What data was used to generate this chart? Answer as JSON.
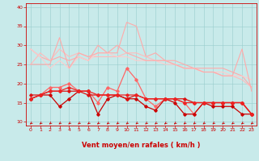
{
  "x": [
    0,
    1,
    2,
    3,
    4,
    5,
    6,
    7,
    8,
    9,
    10,
    11,
    12,
    13,
    14,
    15,
    16,
    17,
    18,
    19,
    20,
    21,
    22,
    23
  ],
  "lines": [
    {
      "color": "#ffaaaa",
      "linewidth": 0.8,
      "marker": null,
      "y": [
        29,
        27,
        26,
        27,
        26,
        27,
        26,
        30,
        28,
        28,
        36,
        35,
        27,
        28,
        26,
        26,
        25,
        24,
        24,
        24,
        24,
        23,
        22,
        19
      ]
    },
    {
      "color": "#ffbbbb",
      "linewidth": 0.8,
      "marker": null,
      "y": [
        25,
        28,
        26,
        29,
        27,
        28,
        27,
        27,
        27,
        27,
        28,
        28,
        27,
        26,
        26,
        25,
        24,
        24,
        23,
        23,
        22,
        22,
        21,
        19
      ]
    },
    {
      "color": "#ffcccc",
      "linewidth": 0.8,
      "marker": null,
      "y": [
        29,
        27,
        24,
        26,
        24,
        27,
        26,
        28,
        28,
        27,
        27,
        26,
        26,
        26,
        25,
        25,
        24,
        24,
        23,
        23,
        23,
        22,
        22,
        21
      ]
    },
    {
      "color": "#ffaaaa",
      "linewidth": 0.8,
      "marker": null,
      "y": [
        25,
        25,
        25,
        32,
        24,
        28,
        27,
        28,
        28,
        30,
        28,
        27,
        26,
        26,
        26,
        25,
        24,
        24,
        23,
        23,
        22,
        22,
        29,
        18
      ]
    },
    {
      "color": "#ff6666",
      "linewidth": 0.9,
      "marker": "D",
      "markersize": 1.8,
      "y": [
        16,
        17,
        19,
        19,
        20,
        18,
        18,
        15,
        19,
        18,
        24,
        21,
        16,
        14,
        16,
        16,
        15,
        12,
        15,
        15,
        15,
        15,
        15,
        12
      ]
    },
    {
      "color": "#cc0000",
      "linewidth": 0.9,
      "marker": "D",
      "markersize": 1.8,
      "y": [
        16,
        17,
        17,
        14,
        16,
        18,
        18,
        12,
        16,
        17,
        16,
        16,
        14,
        13,
        16,
        15,
        12,
        12,
        15,
        14,
        14,
        14,
        12,
        12
      ]
    },
    {
      "color": "#dd1111",
      "linewidth": 0.9,
      "marker": "D",
      "markersize": 1.8,
      "y": [
        17,
        17,
        18,
        18,
        18,
        18,
        17,
        17,
        17,
        17,
        16,
        17,
        16,
        16,
        16,
        16,
        16,
        15,
        15,
        15,
        15,
        15,
        15,
        12
      ]
    },
    {
      "color": "#ee2222",
      "linewidth": 0.9,
      "marker": "D",
      "markersize": 1.8,
      "y": [
        16,
        17,
        18,
        18,
        19,
        18,
        18,
        17,
        17,
        17,
        17,
        17,
        16,
        16,
        16,
        16,
        15,
        15,
        15,
        15,
        15,
        15,
        15,
        12
      ]
    }
  ],
  "xlim": [
    -0.5,
    23.5
  ],
  "ylim": [
    9,
    41
  ],
  "yticks": [
    10,
    15,
    20,
    25,
    30,
    35,
    40
  ],
  "xticks": [
    0,
    1,
    2,
    3,
    4,
    5,
    6,
    7,
    8,
    9,
    10,
    11,
    12,
    13,
    14,
    15,
    16,
    17,
    18,
    19,
    20,
    21,
    22,
    23
  ],
  "xlabel": "Vent moyen/en rafales ( km/h )",
  "xlabel_color": "#cc0000",
  "xlabel_fontsize": 6,
  "tick_color": "#cc0000",
  "tick_fontsize": 4.5,
  "background_color": "#c8eaea",
  "grid_color": "#99cccc",
  "arrow_color": "#cc0000"
}
